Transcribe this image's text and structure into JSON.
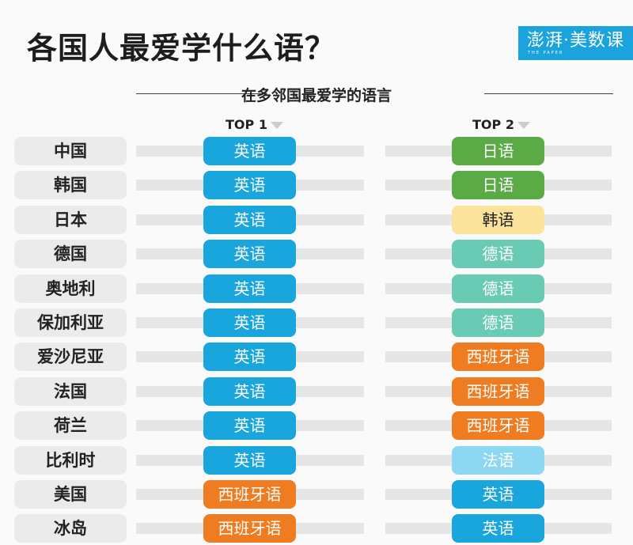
{
  "title": "各国人最爱学什么语？",
  "logo": {
    "text": "澎湃·美数课",
    "sub": "THE PAPER"
  },
  "subtitle": "在多邻国最爱学的语言",
  "columns": {
    "top1": "TOP 1",
    "top2": "TOP 2"
  },
  "colors": {
    "英语": "#19a6dc",
    "日语": "#5aab46",
    "韩语": "#fbe39c",
    "德语": "#6acbb4",
    "西班牙语": "#f07c22",
    "法语": "#8ed7f3"
  },
  "dark_text_languages": [
    "韩语"
  ],
  "rows": [
    {
      "country": "中国",
      "top1": "英语",
      "top2": "日语"
    },
    {
      "country": "韩国",
      "top1": "英语",
      "top2": "日语"
    },
    {
      "country": "日本",
      "top1": "英语",
      "top2": "韩语"
    },
    {
      "country": "德国",
      "top1": "英语",
      "top2": "德语"
    },
    {
      "country": "奥地利",
      "top1": "英语",
      "top2": "德语"
    },
    {
      "country": "保加利亚",
      "top1": "英语",
      "top2": "德语"
    },
    {
      "country": "爱沙尼亚",
      "top1": "英语",
      "top2": "西班牙语"
    },
    {
      "country": "法国",
      "top1": "英语",
      "top2": "西班牙语"
    },
    {
      "country": "荷兰",
      "top1": "英语",
      "top2": "西班牙语"
    },
    {
      "country": "比利时",
      "top1": "英语",
      "top2": "法语"
    },
    {
      "country": "美国",
      "top1": "西班牙语",
      "top2": "英语"
    },
    {
      "country": "冰岛",
      "top1": "西班牙语",
      "top2": "英语"
    }
  ]
}
